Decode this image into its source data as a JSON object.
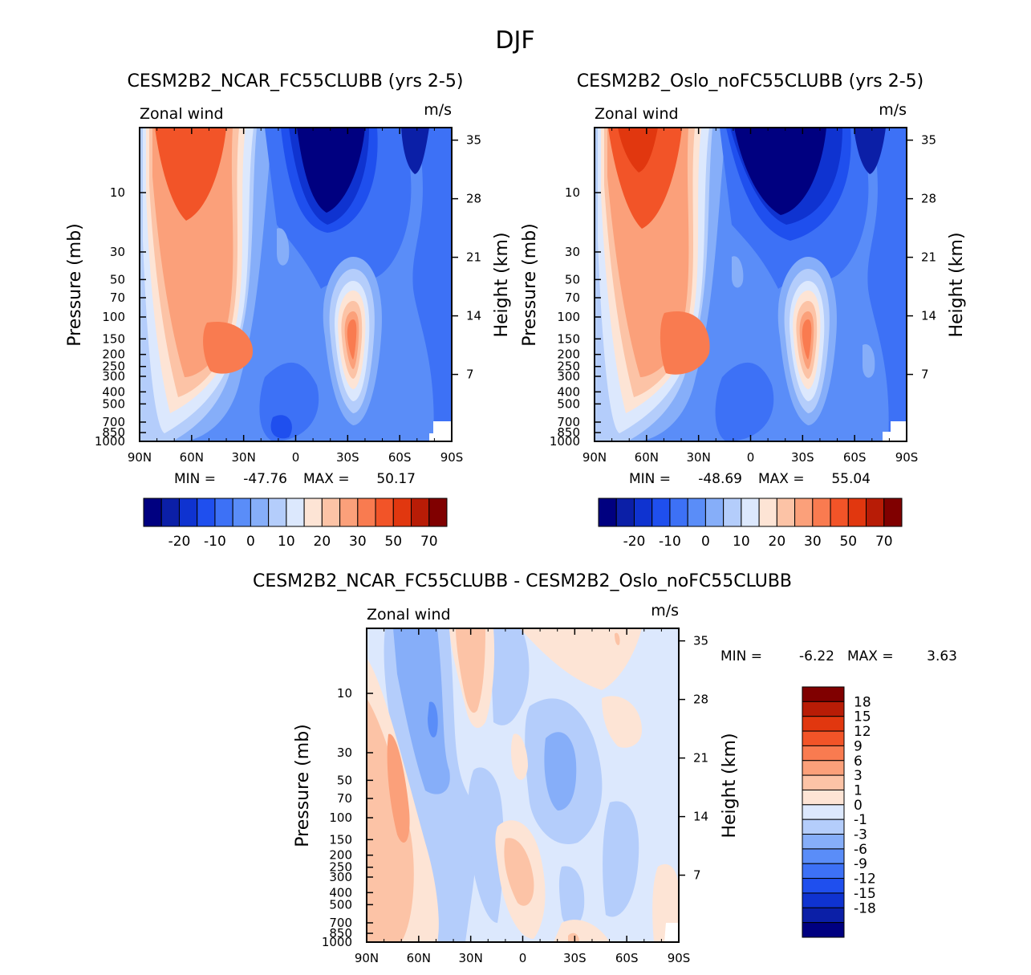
{
  "page_title": "DJF",
  "colors": {
    "wind_levels": [
      "#000080",
      "#0b1fa7",
      "#0f33d0",
      "#1f4fee",
      "#3d71f6",
      "#5a8df8",
      "#86aef9",
      "#b4cdfb",
      "#dce8fd",
      "#fde4d5",
      "#fcc3a6",
      "#fba07a",
      "#f97b50",
      "#f25428",
      "#e1370f",
      "#b81c06",
      "#800000"
    ],
    "diff_levels": [
      "#000080",
      "#0b1fa7",
      "#0f33d0",
      "#1f4fee",
      "#3d71f6",
      "#5a8df8",
      "#86aef9",
      "#b4cdfb",
      "#dce8fd",
      "#fde4d5",
      "#fcc3a6",
      "#fba07a",
      "#f97b50",
      "#f25428",
      "#e1370f",
      "#b81c06",
      "#800000"
    ]
  },
  "chart_data": [
    {
      "type": "heatmap",
      "title": "CESM2B2_NCAR_FC55CLUBB (yrs 2-5)",
      "left_label": "Zonal wind",
      "right_label": "m/s",
      "ylabel": "Pressure (mb)",
      "y2label": "Height (km)",
      "x": [
        "90N",
        "60N",
        "30N",
        "0",
        "30S",
        "60S",
        "90S"
      ],
      "xlim": [
        90,
        -90
      ],
      "pressure_ticks": [
        10,
        30,
        50,
        70,
        100,
        150,
        200,
        250,
        300,
        400,
        500,
        700,
        850,
        1000
      ],
      "height_ticks": [
        35,
        28,
        21,
        14,
        7
      ],
      "stats": {
        "min_label": "MIN =",
        "min": "-47.76",
        "max_label": "MAX =",
        "max": "50.17"
      },
      "colorbar_ticks": [
        "-20",
        "-10",
        "0",
        "10",
        "20",
        "30",
        "50",
        "70"
      ]
    },
    {
      "type": "heatmap",
      "title": "CESM2B2_Oslo_noFC55CLUBB (yrs 2-5)",
      "left_label": "Zonal wind",
      "right_label": "m/s",
      "ylabel": "Pressure (mb)",
      "y2label": "Height (km)",
      "x": [
        "90N",
        "60N",
        "30N",
        "0",
        "30S",
        "60S",
        "90S"
      ],
      "xlim": [
        90,
        -90
      ],
      "pressure_ticks": [
        10,
        30,
        50,
        70,
        100,
        150,
        200,
        250,
        300,
        400,
        500,
        700,
        850,
        1000
      ],
      "height_ticks": [
        35,
        28,
        21,
        14,
        7
      ],
      "stats": {
        "min_label": "MIN =",
        "min": "-48.69",
        "max_label": "MAX =",
        "max": "55.04"
      },
      "colorbar_ticks": [
        "-20",
        "-10",
        "0",
        "10",
        "20",
        "30",
        "50",
        "70"
      ]
    },
    {
      "type": "heatmap",
      "title": "CESM2B2_NCAR_FC55CLUBB - CESM2B2_Oslo_noFC55CLUBB",
      "left_label": "Zonal wind",
      "right_label": "m/s",
      "ylabel": "Pressure (mb)",
      "y2label": "Height (km)",
      "x": [
        "90N",
        "60N",
        "30N",
        "0",
        "30S",
        "60S",
        "90S"
      ],
      "xlim": [
        90,
        -90
      ],
      "pressure_ticks": [
        10,
        30,
        50,
        70,
        100,
        150,
        200,
        250,
        300,
        400,
        500,
        700,
        850,
        1000
      ],
      "height_ticks": [
        35,
        28,
        21,
        14,
        7
      ],
      "stats": {
        "min_label": "MIN =",
        "min": "-6.22",
        "max_label": "MAX =",
        "max": "3.63"
      },
      "colorbar_ticks": [
        "18",
        "15",
        "12",
        "9",
        "6",
        "3",
        "1",
        "0",
        "-1",
        "-3",
        "-6",
        "-9",
        "-12",
        "-15",
        "-18"
      ]
    }
  ]
}
